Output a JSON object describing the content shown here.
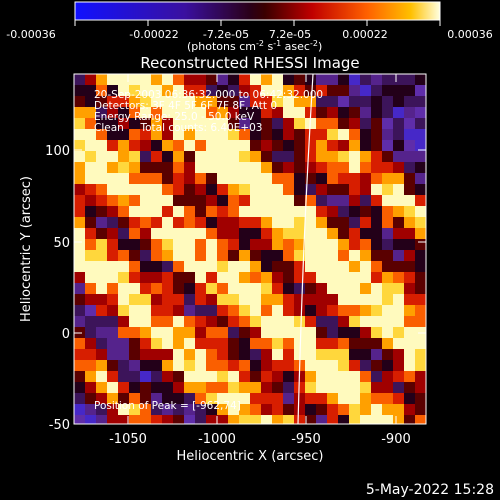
{
  "colorbar": {
    "tick_labels": [
      "-0.00036",
      "-0.00022",
      "-7.2e-05",
      "7.2e-05",
      "0.00022",
      "0.00036"
    ],
    "units_main": "(photons cm",
    "units_sup1": "-2",
    "units_mid": " s",
    "units_sup2": "-1",
    "units_end": " asec",
    "units_sup3": "-2",
    "units_close": ")"
  },
  "title": "Reconstructed RHESSI Image",
  "info": {
    "line1": "20-Sep-2003 06:36:32.000 to 06:42:32.000",
    "line2": "Detectors: 3F 4F 5F 6F 7F 8F, Att 0",
    "line3": "Energy Range: 25.0 - 50.0 keV",
    "line4": "Clean     Total counts: 6.40E+03",
    "peak": "Position of Peak = [-962,74]"
  },
  "axes": {
    "xlabel": "Heliocentric X (arcsec)",
    "ylabel": "Heliocentric Y (arcsec)",
    "xticks": [
      "-1050",
      "-1000",
      "-950",
      "-900"
    ],
    "yticks": [
      "100",
      "50",
      "0",
      "-50"
    ]
  },
  "timestamp": "5-May-2022 15:28"
}
